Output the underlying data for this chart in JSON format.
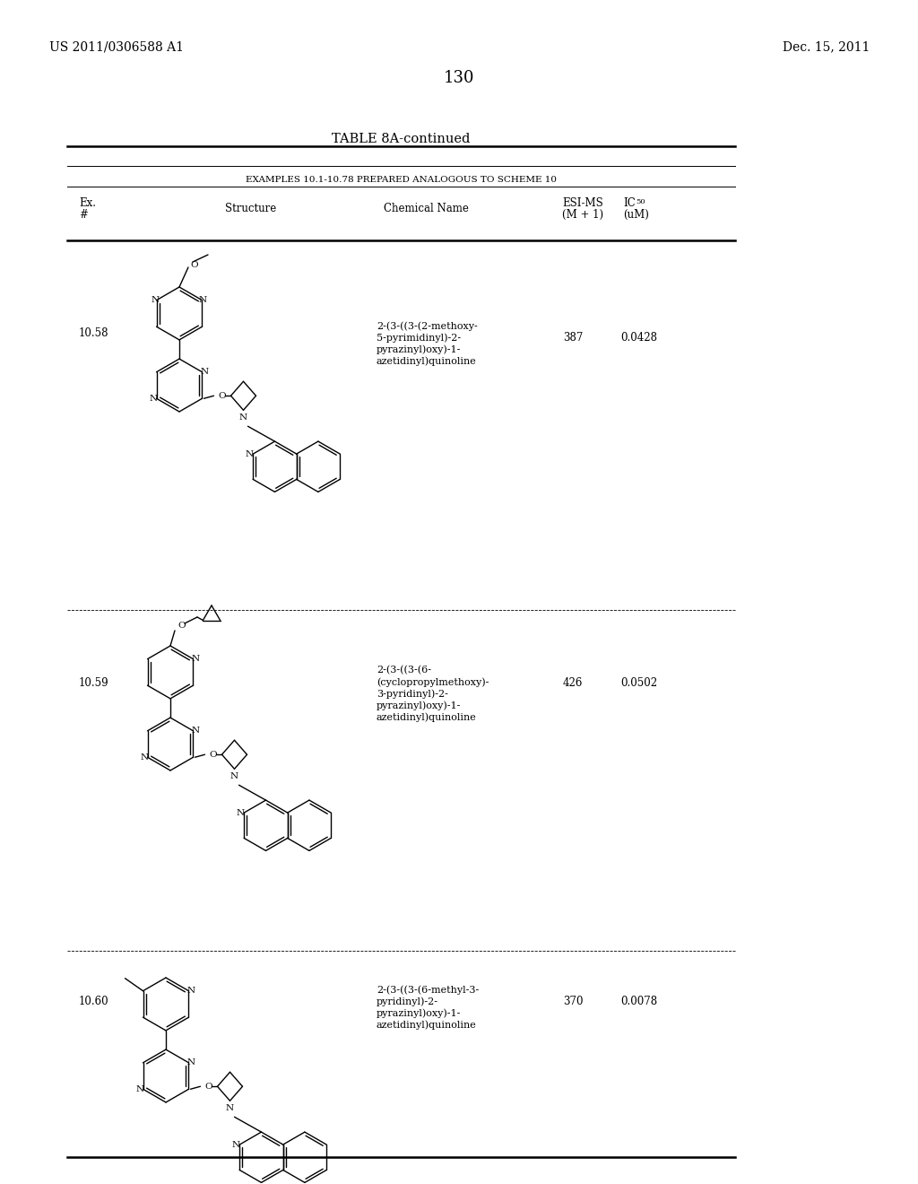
{
  "page_number": "130",
  "patent_number": "US 2011/0306588 A1",
  "patent_date": "Dec. 15, 2011",
  "table_title": "TABLE 8A-continued",
  "table_subtitle": "EXAMPLES 10.1-10.78 PREPARED ANALOGOUS TO SCHEME 10",
  "rows": [
    {
      "ex": "10.58",
      "chem_name": "2-(3-((3-(2-methoxy-\n5-pyrimidinyl)-2-\npyrazinyl)oxy)-1-\nazetidinyl)quinoline",
      "esi_ms": "387",
      "ic50": "0.0428"
    },
    {
      "ex": "10.59",
      "chem_name": "2-(3-((3-(6-\n(cyclopropylmethoxy)-\n3-pyridinyl)-2-\npyrazinyl)oxy)-1-\nazetidinyl)quinoline",
      "esi_ms": "426",
      "ic50": "0.0502"
    },
    {
      "ex": "10.60",
      "chem_name": "2-(3-((3-(6-methyl-3-\npyridinyl)-2-\npyrazinyl)oxy)-1-\nazetidinyl)quinoline",
      "esi_ms": "370",
      "ic50": "0.0078"
    }
  ]
}
